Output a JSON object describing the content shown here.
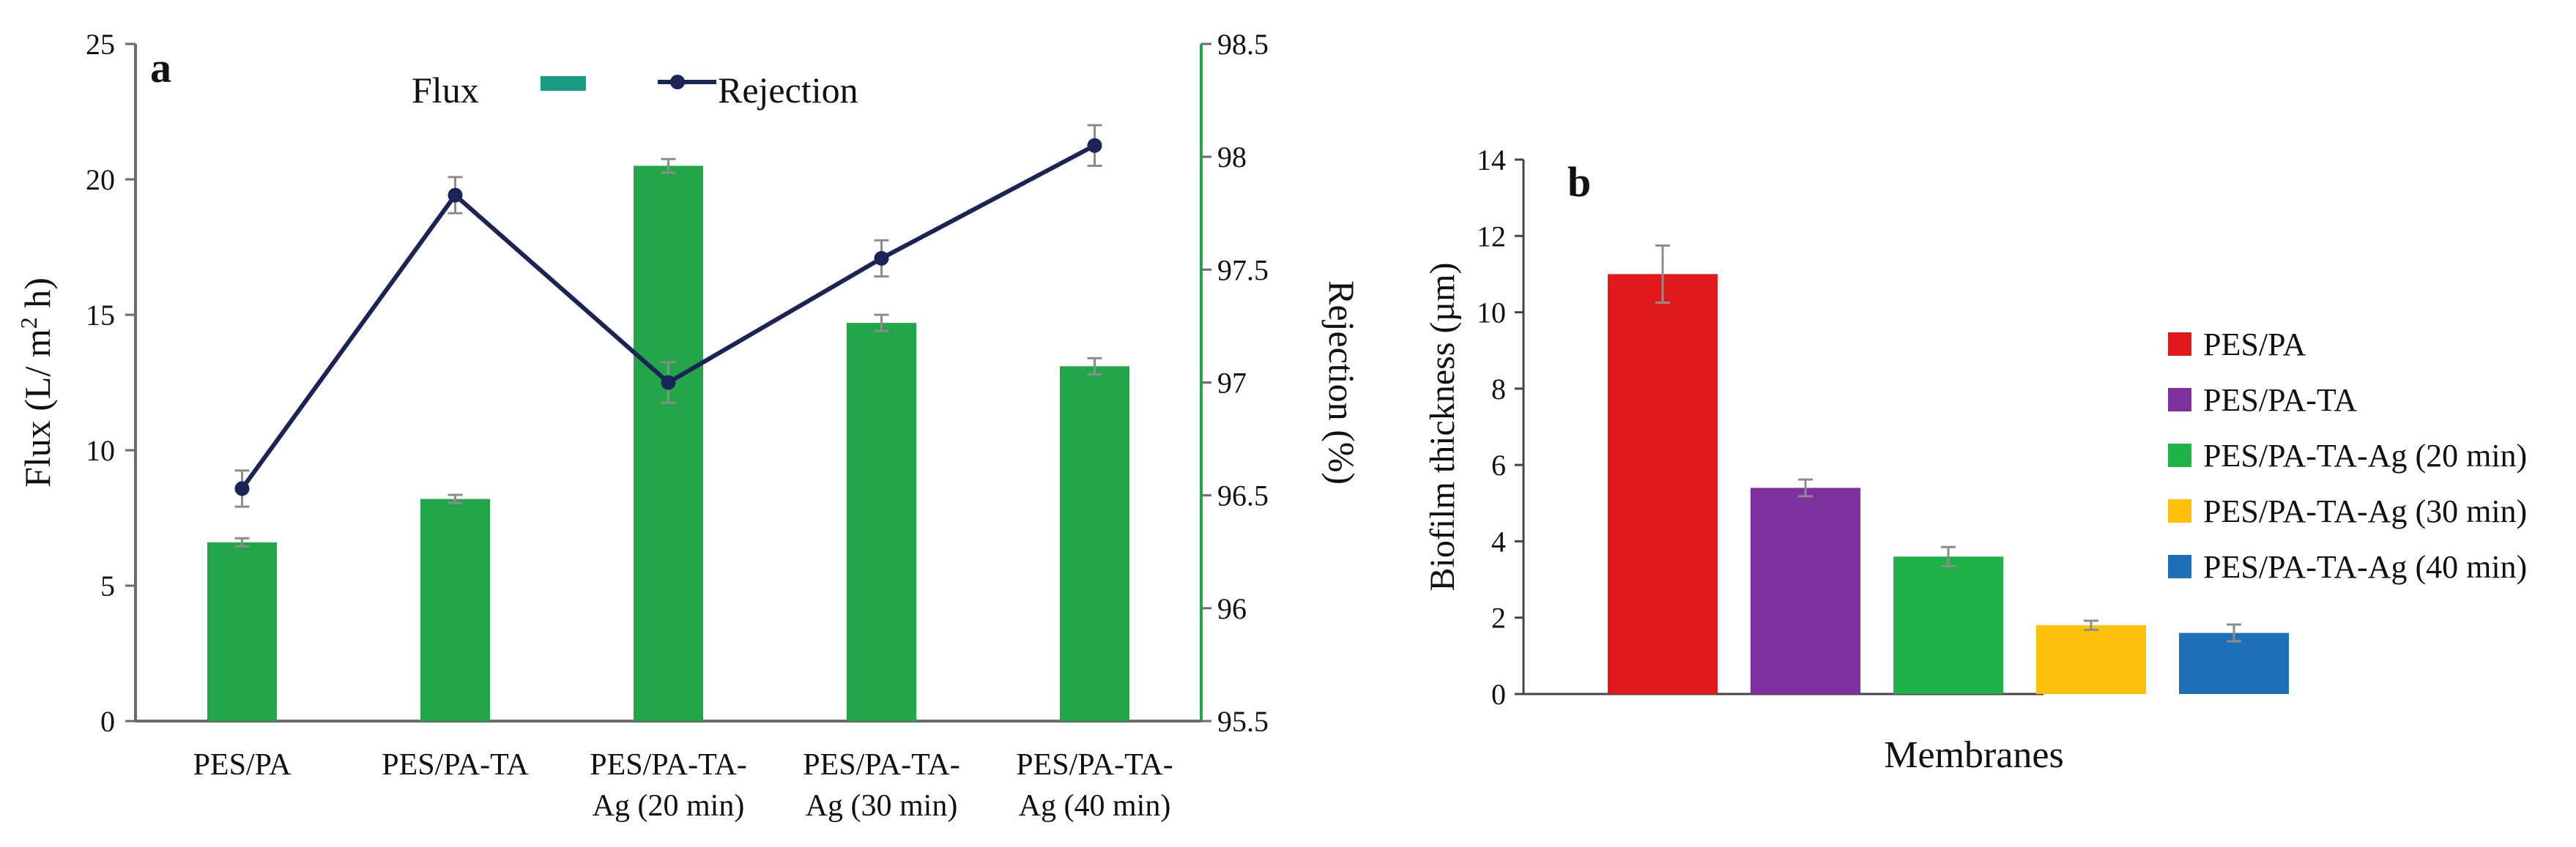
{
  "chart_data": [
    {
      "panel_label": "a",
      "type": "bar+line",
      "categories": [
        [
          "PES/PA"
        ],
        [
          "PES/PA-TA"
        ],
        [
          "PES/PA-TA-",
          "Ag (20 min)"
        ],
        [
          "PES/PA-TA-",
          "Ag (30 min)"
        ],
        [
          "PES/PA-TA-",
          "Ag (40 min)"
        ]
      ],
      "left_axis": {
        "label": "Flux  (L/ m",
        "label_sup": "2",
        "label_tail": " h)",
        "ylim": [
          0,
          25
        ],
        "ticks": [
          0,
          5,
          10,
          15,
          20,
          25
        ]
      },
      "right_axis": {
        "label": "Rejection (%)",
        "ylim": [
          95.5,
          98.5
        ],
        "ticks": [
          95.5,
          96,
          96.5,
          97,
          97.5,
          98,
          98.5
        ]
      },
      "series": [
        {
          "name": "Flux",
          "kind": "bar",
          "axis": "left",
          "color": "#23a64a",
          "values": [
            6.6,
            8.2,
            20.5,
            14.7,
            13.1
          ],
          "errors": [
            0.15,
            0.15,
            0.25,
            0.3,
            0.3
          ]
        },
        {
          "name": "Rejection",
          "kind": "line",
          "axis": "right",
          "color": "#1a2456",
          "values": [
            96.53,
            97.83,
            97.0,
            97.55,
            98.05
          ],
          "errors": [
            0.08,
            0.08,
            0.09,
            0.08,
            0.09
          ]
        }
      ],
      "legend": {
        "flux_label": "Flux",
        "rejection_label": "Rejection",
        "flux_swatch_color": "#1a9b84"
      }
    },
    {
      "panel_label": "b",
      "type": "bar",
      "xlabel": "Membranes",
      "ylabel": "Biofilm thickness (µm)",
      "ylim": [
        0,
        14
      ],
      "ticks": [
        0,
        2,
        4,
        6,
        8,
        10,
        12,
        14
      ],
      "bars": [
        {
          "name": "PES/PA",
          "value": 11.0,
          "error": 0.75,
          "color": "#e0191d"
        },
        {
          "name": "PES/PA-TA",
          "value": 5.4,
          "error": 0.22,
          "color": "#7e2fa0"
        },
        {
          "name": "PES/PA-TA-Ag (20 min)",
          "value": 3.6,
          "error": 0.25,
          "color": "#1fb24b"
        },
        {
          "name": "PES/PA-TA-Ag (30 min)",
          "value": 1.8,
          "error": 0.12,
          "color": "#fcc00a"
        },
        {
          "name": "PES/PA-TA-Ag (40 min)",
          "value": 1.6,
          "error": 0.22,
          "color": "#1d6fb8"
        }
      ],
      "legend_position": "right"
    }
  ]
}
